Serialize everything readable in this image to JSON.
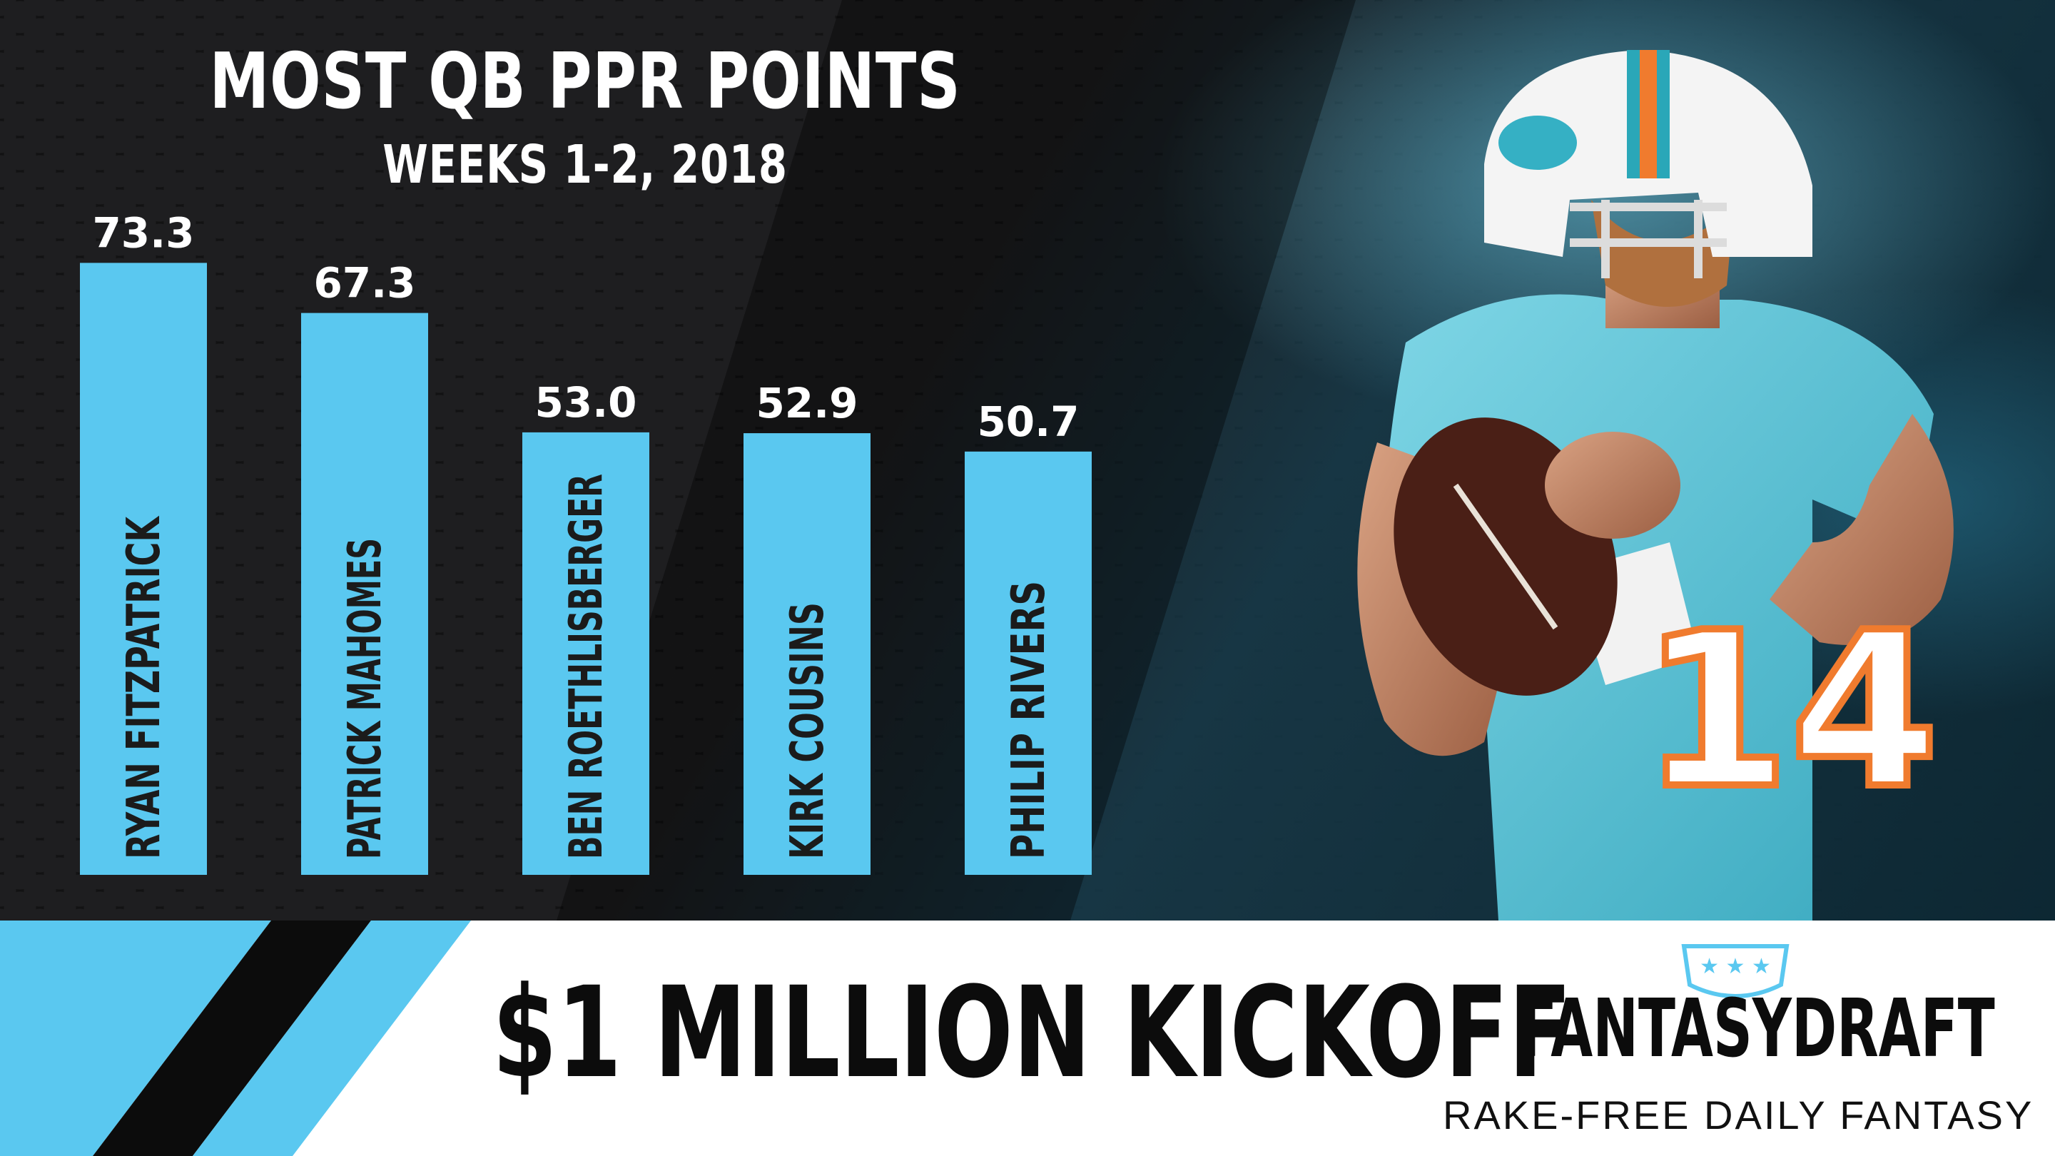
{
  "header": {
    "title": "MOST QB PPR POINTS",
    "subtitle": "WEEKS 1-2, 2018"
  },
  "colors": {
    "accent": "#5ac8f0",
    "background": "#121213",
    "text_dark": "#0c0c0c",
    "panel": "#ffffff"
  },
  "chart_data": {
    "type": "bar",
    "title": "MOST QB PPR POINTS",
    "subtitle": "WEEKS 1-2, 2018",
    "categories": [
      "RYAN FITZPATRICK",
      "PATRICK MAHOMES",
      "BEN ROETHLISBERGER",
      "KIRK COUSINS",
      "PHILIP RIVERS"
    ],
    "values": [
      73.3,
      67.3,
      53.0,
      52.9,
      50.7
    ],
    "value_labels": [
      "73.3",
      "67.3",
      "53.0",
      "52.9",
      "50.7"
    ],
    "orientation": "vertical",
    "category_label_rotation": "vertical",
    "grid": false,
    "legend": "none",
    "bar_color": "#5ac8f0"
  },
  "banner": {
    "headline": "$1 MILLION KICKOFF"
  },
  "brand": {
    "name": "FANTASYDRAFT",
    "tagline": "RAKE-FREE DAILY FANTASY",
    "badge_icon": "three-stars-shield-icon"
  },
  "photo": {
    "jersey_number": "14"
  }
}
